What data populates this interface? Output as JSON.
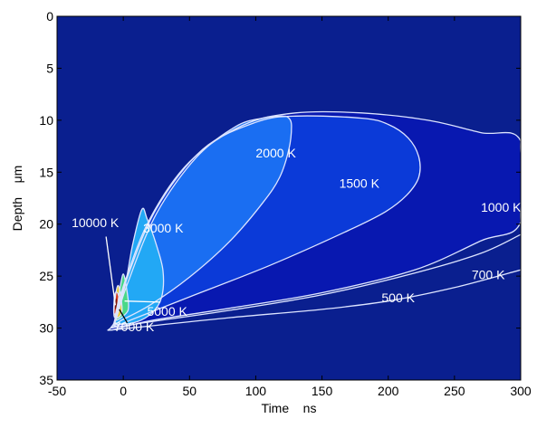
{
  "chart_data": {
    "type": "contour",
    "title": "",
    "xlabel": "Time    ns",
    "ylabel": "Depth    μm",
    "xlim": [
      -50,
      300
    ],
    "ylim": [
      35,
      0
    ],
    "y_axis_inverted": true,
    "grid": false,
    "xticks": [
      -50,
      0,
      50,
      100,
      150,
      200,
      250,
      300
    ],
    "yticks": [
      0,
      5,
      10,
      15,
      20,
      25,
      30,
      35
    ],
    "xtick_labels": [
      "-50",
      "0",
      "50",
      "100",
      "150",
      "200",
      "250",
      "300"
    ],
    "ytick_labels": [
      "0",
      "5",
      "10",
      "15",
      "20",
      "25",
      "30",
      "35"
    ],
    "background_color": "#0a1f8f",
    "contour_color": "#dde4ff",
    "contours": [
      {
        "level": "500 K",
        "label": "500 K",
        "label_at": [
          195,
          27.5
        ],
        "fill": null,
        "points": [
          [
            -10,
            30.2
          ],
          [
            20,
            29.8
          ],
          [
            80,
            29.0
          ],
          [
            150,
            28.2
          ],
          [
            200,
            27.4
          ],
          [
            250,
            26.1
          ],
          [
            300,
            24.4
          ]
        ]
      },
      {
        "level": "700 K",
        "label": "700 K",
        "label_at": [
          263,
          25.3
        ],
        "fill": null,
        "points": [
          [
            -10,
            30.0
          ],
          [
            20,
            29.4
          ],
          [
            80,
            28.3
          ],
          [
            150,
            26.8
          ],
          [
            220,
            24.7
          ],
          [
            270,
            22.8
          ],
          [
            300,
            21.0
          ]
        ]
      },
      {
        "level": "1000 K",
        "label": "1000 K",
        "label_at": [
          270,
          18.8
        ],
        "fill": "#0818b0",
        "points": [
          [
            -10,
            30.2
          ],
          [
            -7,
            29.5
          ],
          [
            0,
            26.0
          ],
          [
            20,
            19.5
          ],
          [
            50,
            14.0
          ],
          [
            90,
            10.5
          ],
          [
            130,
            9.3
          ],
          [
            180,
            9.3
          ],
          [
            230,
            10.0
          ],
          [
            270,
            11.2
          ],
          [
            300,
            12.0
          ],
          [
            300,
            19.8
          ],
          [
            270,
            21.6
          ],
          [
            220,
            24.4
          ],
          [
            150,
            26.6
          ],
          [
            80,
            28.1
          ],
          [
            20,
            29.3
          ],
          [
            -10,
            30.2
          ]
        ]
      },
      {
        "level": "1000 K boundary",
        "label": "",
        "label_at": null,
        "fill": null,
        "points": [
          [
            300,
            12.0
          ],
          [
            300,
            13.0
          ],
          [
            302,
            15.5
          ],
          [
            300,
            18.5
          ],
          [
            300,
            19.8
          ]
        ]
      },
      {
        "level": "1500 K",
        "label": "1500 K",
        "label_at": [
          163,
          16.5
        ],
        "fill": "#0b3ad8",
        "points": [
          [
            -8,
            29.9
          ],
          [
            -6,
            29.2
          ],
          [
            2,
            25.5
          ],
          [
            25,
            18.5
          ],
          [
            60,
            12.8
          ],
          [
            100,
            10.2
          ],
          [
            130,
            9.6
          ],
          [
            180,
            9.8
          ],
          [
            200,
            10.4
          ],
          [
            215,
            11.7
          ],
          [
            223,
            13.5
          ],
          [
            223,
            15.5
          ],
          [
            214,
            17.2
          ],
          [
            198,
            18.8
          ],
          [
            170,
            20.6
          ],
          [
            110,
            24.0
          ],
          [
            50,
            27.0
          ],
          [
            10,
            29.0
          ],
          [
            -8,
            29.9
          ]
        ]
      },
      {
        "level": "2000 K",
        "label": "2000 K",
        "label_at": [
          100,
          13.6
        ],
        "fill": "#1a6ef2",
        "points": [
          [
            -7,
            29.8
          ],
          [
            -5,
            29.0
          ],
          [
            3,
            25.8
          ],
          [
            25,
            19.0
          ],
          [
            55,
            13.6
          ],
          [
            85,
            10.6
          ],
          [
            105,
            9.8
          ],
          [
            120,
            9.6
          ],
          [
            125,
            9.8
          ],
          [
            127,
            10.6
          ],
          [
            125,
            12.8
          ],
          [
            118,
            15.5
          ],
          [
            105,
            18.0
          ],
          [
            80,
            21.7
          ],
          [
            50,
            25.1
          ],
          [
            20,
            27.8
          ],
          [
            -2,
            29.3
          ],
          [
            -7,
            29.8
          ]
        ]
      },
      {
        "level": "3000 K",
        "label": "3000 K",
        "label_at": [
          15,
          20.8
        ],
        "fill": "#22a8f5",
        "points": [
          [
            -6,
            29.6
          ],
          [
            -4,
            28.5
          ],
          [
            2,
            25.5
          ],
          [
            7,
            22.0
          ],
          [
            14,
            18.6
          ],
          [
            18,
            19.5
          ],
          [
            25,
            22.0
          ],
          [
            30,
            24.5
          ],
          [
            29,
            27.0
          ],
          [
            22,
            28.5
          ],
          [
            10,
            29.4
          ],
          [
            -6,
            29.6
          ]
        ]
      },
      {
        "level": "5000 K",
        "label": "5000 K",
        "label_at": [
          18,
          28.8
        ],
        "fill": "#4ad888",
        "points": [
          [
            -6,
            29.2
          ],
          [
            -4,
            27.5
          ],
          [
            -2,
            25.8
          ],
          [
            0,
            24.8
          ],
          [
            2,
            25.8
          ],
          [
            4,
            27.8
          ],
          [
            2,
            28.6
          ],
          [
            -6,
            29.2
          ]
        ]
      },
      {
        "level": "7000 K",
        "label": "7000 K",
        "label_at": [
          -7,
          30.3
        ],
        "fill": "#e8d038",
        "points": [
          [
            -7,
            28.8
          ],
          [
            -6,
            27.0
          ],
          [
            -4,
            25.9
          ],
          [
            -2,
            26.8
          ],
          [
            -1,
            28.4
          ],
          [
            -4,
            29.0
          ],
          [
            -7,
            28.8
          ]
        ]
      },
      {
        "level": "10000 K",
        "label": "10000 K",
        "label_at": [
          -39,
          20.3
        ],
        "fill": "#d83818",
        "points": [
          [
            -7,
            28.6
          ],
          [
            -7,
            27.5
          ],
          [
            -6,
            26.6
          ],
          [
            -4,
            26.7
          ],
          [
            -3,
            27.6
          ],
          [
            -4,
            28.4
          ],
          [
            -7,
            28.6
          ]
        ]
      }
    ],
    "inner_core": {
      "fill": "#7a1408",
      "points": [
        [
          -6.5,
          28.0
        ],
        [
          -6,
          27.3
        ],
        [
          -5,
          27.2
        ],
        [
          -4.6,
          27.8
        ],
        [
          -5.2,
          28.2
        ],
        [
          -6.5,
          28.0
        ]
      ]
    },
    "leaders": [
      {
        "label": "10000 K",
        "from": [
          -13,
          21.2
        ],
        "to": [
          -6,
          27.8
        ],
        "color": "#ffffff"
      },
      {
        "label": "5000 K",
        "from": [
          28,
          27.5
        ],
        "to": [
          1,
          27.4
        ],
        "color": "#ffffff"
      },
      {
        "label": "7000 K",
        "from": [
          3,
          29.5
        ],
        "to": [
          -3,
          28.2
        ],
        "color": "#000000"
      }
    ]
  }
}
